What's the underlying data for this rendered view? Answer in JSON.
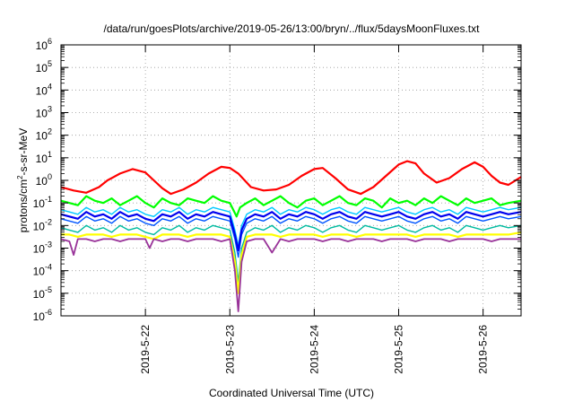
{
  "chart_data": {
    "type": "line",
    "title": "/data/run/goesPlots/archive/2019-05-26/13:00/bryn/../flux/5daysMoonFluxes.txt",
    "xlabel": "Coordinated Universal Time (UTC)",
    "ylabel_parts": [
      "protons/cm",
      "2",
      "-s-sr-MeV"
    ],
    "yscale": "log",
    "ylim_exp": [
      -6,
      6
    ],
    "xlim": [
      0,
      5.45
    ],
    "x_unit": "days after 2019-05-21 00:00 UTC",
    "grid": true,
    "x_ticks": [
      {
        "x": 1,
        "label": "2019-5-22"
      },
      {
        "x": 2,
        "label": "2019-5-23"
      },
      {
        "x": 3,
        "label": "2019-5-24"
      },
      {
        "x": 4,
        "label": "2019-5-25"
      },
      {
        "x": 5,
        "label": "2019-5-26"
      }
    ],
    "series": [
      {
        "color": "#ff0000",
        "width": 2.2,
        "x": [
          0.0,
          0.15,
          0.3,
          0.45,
          0.55,
          0.7,
          0.85,
          1.0,
          1.1,
          1.2,
          1.3,
          1.45,
          1.6,
          1.75,
          1.9,
          2.0,
          2.1,
          2.25,
          2.4,
          2.55,
          2.7,
          2.85,
          3.0,
          3.1,
          3.25,
          3.4,
          3.55,
          3.7,
          3.85,
          4.0,
          4.1,
          4.2,
          4.3,
          4.45,
          4.6,
          4.75,
          4.9,
          5.0,
          5.1,
          5.2,
          5.3,
          5.45
        ],
        "log_y": [
          -0.3,
          -0.45,
          -0.55,
          -0.3,
          0.0,
          0.3,
          0.5,
          0.35,
          0.0,
          -0.35,
          -0.6,
          -0.4,
          -0.1,
          0.3,
          0.6,
          0.55,
          0.3,
          -0.3,
          -0.45,
          -0.4,
          -0.2,
          0.2,
          0.5,
          0.55,
          0.1,
          -0.4,
          -0.6,
          -0.3,
          0.2,
          0.7,
          0.85,
          0.75,
          0.3,
          -0.1,
          0.1,
          0.5,
          0.8,
          0.6,
          0.2,
          -0.1,
          -0.2,
          0.15
        ]
      },
      {
        "color": "#00ff00",
        "width": 2.2,
        "x": [
          0.0,
          0.1,
          0.2,
          0.3,
          0.4,
          0.5,
          0.6,
          0.7,
          0.8,
          0.9,
          1.0,
          1.1,
          1.2,
          1.3,
          1.4,
          1.5,
          1.6,
          1.7,
          1.8,
          1.9,
          2.0,
          2.08,
          2.12,
          2.2,
          2.3,
          2.4,
          2.5,
          2.6,
          2.7,
          2.8,
          2.9,
          3.0,
          3.1,
          3.2,
          3.3,
          3.4,
          3.5,
          3.6,
          3.7,
          3.8,
          3.9,
          4.0,
          4.1,
          4.2,
          4.3,
          4.4,
          4.5,
          4.6,
          4.7,
          4.8,
          4.9,
          5.0,
          5.1,
          5.2,
          5.3,
          5.45
        ],
        "log_y": [
          -0.9,
          -1.0,
          -1.1,
          -0.7,
          -0.9,
          -1.0,
          -0.8,
          -1.1,
          -0.9,
          -0.7,
          -1.0,
          -1.2,
          -0.8,
          -1.0,
          -1.1,
          -0.8,
          -0.9,
          -1.0,
          -0.7,
          -0.9,
          -1.0,
          -1.6,
          -1.2,
          -1.0,
          -0.8,
          -1.1,
          -0.9,
          -0.7,
          -1.0,
          -1.2,
          -0.9,
          -0.8,
          -1.1,
          -0.9,
          -0.7,
          -1.0,
          -1.1,
          -0.8,
          -0.9,
          -1.2,
          -0.8,
          -1.0,
          -0.9,
          -1.1,
          -0.8,
          -1.0,
          -0.7,
          -0.9,
          -1.1,
          -0.8,
          -1.0,
          -0.9,
          -0.8,
          -1.1,
          -1.0,
          -0.9
        ]
      },
      {
        "color": "#00c8ff",
        "width": 1.4,
        "x": [
          0.0,
          0.1,
          0.2,
          0.3,
          0.4,
          0.5,
          0.6,
          0.7,
          0.8,
          0.9,
          1.0,
          1.1,
          1.2,
          1.3,
          1.4,
          1.5,
          1.6,
          1.7,
          1.8,
          1.9,
          2.0,
          2.06,
          2.1,
          2.14,
          2.2,
          2.3,
          2.4,
          2.5,
          2.6,
          2.7,
          2.8,
          2.9,
          3.0,
          3.1,
          3.2,
          3.3,
          3.4,
          3.5,
          3.6,
          3.7,
          3.8,
          3.9,
          4.0,
          4.1,
          4.2,
          4.3,
          4.4,
          4.5,
          4.6,
          4.7,
          4.8,
          4.9,
          5.0,
          5.1,
          5.2,
          5.3,
          5.45
        ],
        "log_y": [
          -1.3,
          -1.4,
          -1.5,
          -1.2,
          -1.4,
          -1.3,
          -1.5,
          -1.2,
          -1.4,
          -1.3,
          -1.5,
          -1.6,
          -1.3,
          -1.4,
          -1.2,
          -1.5,
          -1.3,
          -1.4,
          -1.2,
          -1.3,
          -1.4,
          -2.2,
          -2.9,
          -2.0,
          -1.5,
          -1.3,
          -1.4,
          -1.2,
          -1.5,
          -1.3,
          -1.4,
          -1.2,
          -1.3,
          -1.5,
          -1.3,
          -1.2,
          -1.4,
          -1.5,
          -1.2,
          -1.3,
          -1.4,
          -1.3,
          -1.2,
          -1.4,
          -1.5,
          -1.3,
          -1.2,
          -1.4,
          -1.3,
          -1.5,
          -1.2,
          -1.3,
          -1.4,
          -1.3,
          -1.2,
          -1.3,
          -1.2
        ]
      },
      {
        "color": "#0055ff",
        "width": 1.4,
        "x": [
          0.0,
          0.1,
          0.2,
          0.3,
          0.4,
          0.5,
          0.6,
          0.7,
          0.8,
          0.9,
          1.0,
          1.1,
          1.2,
          1.3,
          1.4,
          1.5,
          1.6,
          1.7,
          1.8,
          1.9,
          2.0,
          2.06,
          2.1,
          2.14,
          2.2,
          2.3,
          2.4,
          2.5,
          2.6,
          2.7,
          2.8,
          2.9,
          3.0,
          3.1,
          3.2,
          3.3,
          3.4,
          3.5,
          3.6,
          3.7,
          3.8,
          3.9,
          4.0,
          4.1,
          4.2,
          4.3,
          4.4,
          4.5,
          4.6,
          4.7,
          4.8,
          4.9,
          5.0,
          5.1,
          5.2,
          5.3,
          5.45
        ],
        "log_y": [
          -1.7,
          -1.8,
          -1.9,
          -1.6,
          -1.8,
          -1.7,
          -1.9,
          -1.6,
          -1.8,
          -1.7,
          -1.9,
          -2.0,
          -1.7,
          -1.8,
          -1.6,
          -1.9,
          -1.7,
          -1.8,
          -1.6,
          -1.7,
          -1.8,
          -2.6,
          -3.4,
          -2.4,
          -1.9,
          -1.7,
          -1.8,
          -1.6,
          -1.9,
          -1.7,
          -1.8,
          -1.6,
          -1.7,
          -1.9,
          -1.7,
          -1.6,
          -1.8,
          -1.9,
          -1.6,
          -1.7,
          -1.8,
          -1.7,
          -1.6,
          -1.8,
          -1.9,
          -1.7,
          -1.6,
          -1.8,
          -1.7,
          -1.9,
          -1.6,
          -1.7,
          -1.8,
          -1.7,
          -1.6,
          -1.7,
          -1.6
        ]
      },
      {
        "color": "#0000ee",
        "width": 2.2,
        "x": [
          0.0,
          0.1,
          0.2,
          0.3,
          0.4,
          0.5,
          0.6,
          0.7,
          0.8,
          0.9,
          1.0,
          1.1,
          1.2,
          1.3,
          1.4,
          1.5,
          1.6,
          1.7,
          1.8,
          1.9,
          2.0,
          2.06,
          2.1,
          2.14,
          2.2,
          2.3,
          2.4,
          2.5,
          2.6,
          2.7,
          2.8,
          2.9,
          3.0,
          3.1,
          3.2,
          3.3,
          3.4,
          3.5,
          3.6,
          3.7,
          3.8,
          3.9,
          4.0,
          4.1,
          4.2,
          4.3,
          4.4,
          4.5,
          4.6,
          4.7,
          4.8,
          4.9,
          5.0,
          5.1,
          5.2,
          5.3,
          5.45
        ],
        "log_y": [
          -1.5,
          -1.6,
          -1.7,
          -1.4,
          -1.6,
          -1.5,
          -1.7,
          -1.4,
          -1.6,
          -1.5,
          -1.7,
          -1.8,
          -1.5,
          -1.6,
          -1.4,
          -1.7,
          -1.5,
          -1.6,
          -1.4,
          -1.5,
          -1.6,
          -2.4,
          -3.1,
          -2.2,
          -1.7,
          -1.5,
          -1.6,
          -1.4,
          -1.7,
          -1.5,
          -1.6,
          -1.4,
          -1.5,
          -1.7,
          -1.5,
          -1.4,
          -1.6,
          -1.7,
          -1.4,
          -1.5,
          -1.6,
          -1.5,
          -1.4,
          -1.6,
          -1.7,
          -1.5,
          -1.4,
          -1.6,
          -1.5,
          -1.7,
          -1.4,
          -1.5,
          -1.6,
          -1.5,
          -1.4,
          -1.5,
          -1.4
        ]
      },
      {
        "color": "#00bba0",
        "width": 1.4,
        "x": [
          0.0,
          0.1,
          0.2,
          0.3,
          0.4,
          0.5,
          0.6,
          0.7,
          0.8,
          0.9,
          1.0,
          1.1,
          1.2,
          1.3,
          1.4,
          1.5,
          1.6,
          1.7,
          1.8,
          1.9,
          2.0,
          2.06,
          2.1,
          2.14,
          2.2,
          2.3,
          2.4,
          2.5,
          2.6,
          2.7,
          2.8,
          2.9,
          3.0,
          3.1,
          3.2,
          3.3,
          3.4,
          3.5,
          3.6,
          3.7,
          3.8,
          3.9,
          4.0,
          4.1,
          4.2,
          4.3,
          4.4,
          4.5,
          4.6,
          4.7,
          4.8,
          4.9,
          5.0,
          5.1,
          5.2,
          5.3,
          5.45
        ],
        "log_y": [
          -2.1,
          -2.2,
          -2.3,
          -2.0,
          -2.2,
          -2.1,
          -2.3,
          -2.0,
          -2.2,
          -2.1,
          -2.3,
          -2.4,
          -2.1,
          -2.2,
          -2.0,
          -2.3,
          -2.1,
          -2.2,
          -2.0,
          -2.1,
          -2.2,
          -3.2,
          -4.5,
          -3.0,
          -2.3,
          -2.1,
          -2.2,
          -2.0,
          -2.3,
          -2.1,
          -2.2,
          -2.0,
          -2.1,
          -2.3,
          -2.1,
          -2.0,
          -2.2,
          -2.3,
          -2.0,
          -2.1,
          -2.2,
          -2.1,
          -2.0,
          -2.2,
          -2.3,
          -2.1,
          -2.0,
          -2.2,
          -2.1,
          -2.3,
          -2.0,
          -2.1,
          -2.2,
          -2.1,
          -2.0,
          -2.1,
          -2.0
        ]
      },
      {
        "color": "#ffff00",
        "width": 2.2,
        "x": [
          0.0,
          0.1,
          0.2,
          0.3,
          0.4,
          0.5,
          0.6,
          0.7,
          0.8,
          0.9,
          1.0,
          1.1,
          1.2,
          1.3,
          1.4,
          1.5,
          1.6,
          1.7,
          1.8,
          1.9,
          2.0,
          2.06,
          2.1,
          2.14,
          2.2,
          2.3,
          2.4,
          2.5,
          2.6,
          2.7,
          2.8,
          2.9,
          3.0,
          3.1,
          3.2,
          3.3,
          3.4,
          3.5,
          3.6,
          3.7,
          3.8,
          3.9,
          4.0,
          4.1,
          4.2,
          4.3,
          4.4,
          4.5,
          4.6,
          4.7,
          4.8,
          4.9,
          5.0,
          5.1,
          5.2,
          5.3,
          5.45
        ],
        "log_y": [
          -2.4,
          -2.4,
          -2.5,
          -2.4,
          -2.4,
          -2.4,
          -2.5,
          -2.4,
          -2.4,
          -2.4,
          -2.5,
          -2.6,
          -2.4,
          -2.4,
          -2.4,
          -2.5,
          -2.4,
          -2.4,
          -2.4,
          -2.4,
          -2.5,
          -3.6,
          -5.0,
          -3.3,
          -2.5,
          -2.4,
          -2.4,
          -2.4,
          -2.5,
          -2.4,
          -2.4,
          -2.4,
          -2.4,
          -2.5,
          -2.4,
          -2.4,
          -2.4,
          -2.5,
          -2.4,
          -2.4,
          -2.4,
          -2.4,
          -2.4,
          -2.4,
          -2.5,
          -2.4,
          -2.4,
          -2.4,
          -2.4,
          -2.5,
          -2.4,
          -2.4,
          -2.4,
          -2.4,
          -2.4,
          -2.4,
          -2.3
        ]
      },
      {
        "color": "#993399",
        "width": 1.8,
        "x": [
          0.0,
          0.1,
          0.15,
          0.2,
          0.3,
          0.4,
          0.5,
          0.6,
          0.7,
          0.8,
          0.9,
          1.0,
          1.05,
          1.1,
          1.2,
          1.3,
          1.4,
          1.5,
          1.6,
          1.7,
          1.8,
          1.9,
          2.0,
          2.06,
          2.1,
          2.14,
          2.2,
          2.3,
          2.4,
          2.5,
          2.6,
          2.7,
          2.8,
          2.9,
          3.0,
          3.1,
          3.2,
          3.3,
          3.4,
          3.5,
          3.6,
          3.7,
          3.8,
          3.9,
          4.0,
          4.1,
          4.2,
          4.3,
          4.4,
          4.5,
          4.6,
          4.7,
          4.8,
          4.9,
          5.0,
          5.1,
          5.2,
          5.3,
          5.45
        ],
        "log_y": [
          -2.6,
          -2.7,
          -3.3,
          -2.6,
          -2.6,
          -2.7,
          -2.6,
          -2.6,
          -2.7,
          -2.6,
          -2.6,
          -2.6,
          -3.0,
          -2.6,
          -2.7,
          -2.6,
          -2.6,
          -2.7,
          -2.6,
          -2.6,
          -2.6,
          -2.7,
          -2.6,
          -4.0,
          -5.8,
          -3.6,
          -2.7,
          -2.6,
          -2.6,
          -3.2,
          -2.6,
          -2.7,
          -2.6,
          -2.6,
          -2.6,
          -2.7,
          -2.6,
          -2.6,
          -2.7,
          -2.6,
          -2.6,
          -2.6,
          -2.7,
          -2.6,
          -2.6,
          -2.6,
          -2.7,
          -2.6,
          -2.6,
          -2.6,
          -2.7,
          -2.6,
          -2.6,
          -2.6,
          -2.6,
          -2.7,
          -2.6,
          -2.6,
          -2.6
        ]
      }
    ]
  }
}
